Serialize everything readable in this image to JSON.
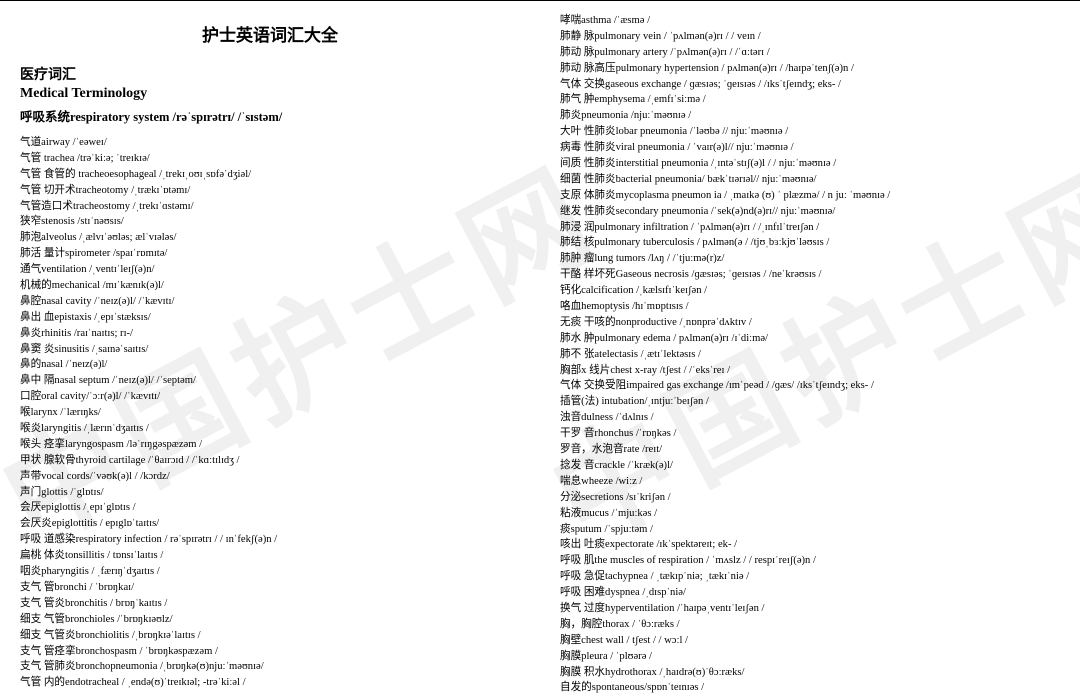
{
  "watermark": "中国护士网",
  "main_title": "护士英语词汇大全",
  "section_cn": "医疗词汇",
  "section_en": "Medical Terminology",
  "subsection_cn": "呼吸系统",
  "subsection_en": "respiratory system /rəˈspɪrətrɪ/ /ˈsɪstəm/",
  "left_entries": [
    "气道airway /ˈeəweɪ/",
    "气管 trachea /trəˈkiːə; ˈtreɪkɪə/",
    "气管 食管的 tracheoesophageal /ˌtrekɪˌoʊɪˌsɒfəˈdʒiəl/",
    "气管 切开术tracheotomy /ˌtrækɪˈɒtəmɪ/",
    "气管造口术tracheostomy /ˌtrekɪˈɑstəmɪ/",
    "狭窄stenosis /stɪˈnəʊsɪs/",
    "肺泡alveolus /ˌælvɪˈəʊləs; ælˈvɪələs/",
    "肺活 量计spirometer /spaɪˈrɒmɪtə/",
    "通气ventilation /ˌventɪˈleɪʃ(ə)n/",
    "机械的mechanical /mɪˈkænɪk(ə)l/",
    "鼻腔nasal cavity /ˈneɪz(ə)l/ /ˈkævɪtɪ/",
    "鼻出 血epistaxis /ˌepɪˈstæksɪs/",
    "鼻炎rhinitis /raɪˈnaɪtɪs; rɪ-/",
    "鼻窦 炎sinusitis /ˌsaɪnəˈsaɪtɪs/",
    "鼻的nasal /ˈneɪz(ə)l/",
    "鼻中 隔nasal septum /ˈneɪz(ə)l/ /ˈseptəm/",
    "口腔oral cavity/ˈɔːr(ə)l/ /ˈkævɪtɪ/",
    "喉larynx /ˈlærɪŋks/",
    "喉炎laryngitis /ˌlærɪnˈdʒaɪtɪs /",
    "喉头 痉挛laryngospasm /ləˈrɪŋgəspæzəm /",
    "甲状 腺软骨thyroid cartilage /ˈθaɪrɔɪd / /ˈkɑːtɪlɪdʒ /",
    "声带vocal cords/ˈvəʊk(ə)l / /kɔrdz/",
    "声门glottis /ˈglɒtɪs/",
    "会厌epiglottis /ˌepɪˈglɒtɪs /",
    "会厌炎epiglottitis / epɪglɒˈtaɪtɪs/",
    "呼吸 道感染respiratory infection / rəˈspɪrətrɪ / / ɪnˈfekʃ(ə)n /",
    "扁桃 体炎tonsillitis / tɒnsɪˈlaɪtɪs /",
    "咽炎pharyngitis / ˌfærɪŋˈdʒaɪtɪs /",
    "支气 管bronchi / ˈbrɒŋkaɪ/",
    "支气 管炎bronchitis / brɒŋˈkaɪtɪs /",
    "细支 气管bronchioles /ˈbrɒŋkɪəʊlz/",
    "细支 气管炎bronchiolitis /ˌbrɒŋkɪəˈlaɪtɪs /",
    "支气 管痉挛bronchospasm / ˈbrɒŋkəspæzəm /",
    "支气 管肺炎bronchopneumonia /ˌbrɒŋkə(ʊ)njuːˈməʊnɪə/",
    "气管 内的endotracheal / ˌendə(ʊ)ˈtreɪkɪəl; -trəˈkiːəl /"
  ],
  "right_entries": [
    "哮喘asthma /ˈæsmə /",
    "肺静 脉pulmonary vein / ˈpʌlmən(ə)rɪ / / veɪn /",
    "肺动 脉pulmonary artery /ˈpʌlmən(ə)rɪ / /ˈɑːtərɪ /",
    "肺动 脉高压pulmonary hypertension / pʌlmən(ə)rɪ / /haɪpəˈtenʃ(ə)n /",
    "气体 交换gaseous exchange / ɡæsɪəs; ˈɡeɪsɪəs / /ɪksˈtʃeɪndʒ; eks- /",
    "肺气 肿emphysema /ˌemfɪˈsiːmə /",
    "肺炎pneumonia /njuːˈməʊnɪə /",
    "大叶 性肺炎lobar pneumonia /ˈləʊbə // njuːˈməʊnɪə /",
    "病毒 性肺炎viral pneumonia / ˈvaɪr(ə)l// njuːˈməʊnɪə /",
    "间质 性肺炎interstitial pneumonia /ˌɪntəˈstɪʃ(ə)l / / njuːˈməʊnɪə /",
    "细菌 性肺炎bacterial pneumonia/ bækˈtɪərɪəl// njuːˈməʊnɪə/",
    "支原 体肺炎mycoplasma pneumon ia / ˌmaɪkə (ʊ) ˈ plæzmə/ /  n juː ˈməʊnɪə  /",
    "继发 性肺炎secondary pneumonia /ˈsek(ə)nd(ə)rɪ// njuːˈməʊnɪə/",
    "肺浸 润pulmonary infiltration / ˈpʌlmən(ə)rɪ / /ˌɪnfɪlˈtreɪʃən /",
    "肺结 核pulmonary tuberculosis / pʌlmən(ə / /tjʊˌbɜːkjʊˈləʊsɪs /",
    "肺肿 瘤lung tumors /lʌŋ / /ˈtjuːmə(r)z/",
    "干酪 样坏死Gaseous necrosis /ɡæsɪəs; ˈɡeɪsɪəs / /neˈkrəʊsɪs /",
    "钙化calcification /ˌkælsɪfɪˈkeɪʃən /",
    "咯血hemoptysis /hɪˈmɒptɪsɪs /",
    "无痰 干咳的nonproductive /ˌnɒnprəˈdʌktɪv /",
    "肺水 肿pulmonary edema / pʌlmən(ə)rɪ /ɪˈdiːmə/",
    "肺不 张atelectasis /ˌætɪˈlektəsɪs /",
    "胸部x 线片chest x-ray /tʃest / /ˈeksˈreɪ /",
    "气体 交换受阻impaired gas exchange /ɪmˈpeəd / /ɡæs/ /ɪksˈtʃeɪndʒ; eks- /",
    "插管(法) intubation/ˌɪntjuːˈbeɪʃən /",
    "浊音dulness /ˈdʌlnɪs /",
    "干罗 音rhonchus /ˈrɒŋkəs /",
    "罗音，水泡音rate /reɪt/",
    "捻发 音crackle /ˈkræk(ə)l/",
    "喘息wheeze /wiːz /",
    "分泌secretions /sɪˈkriʃən /",
    "粘液mucus /ˈmjuːkəs /",
    "痰sputum /ˈspjuːtəm /",
    "咳出 吐痰expectorate /ɪkˈspektəreɪt; ek- /",
    "呼吸 肌the muscles of respiration / ˈmʌslz / / respɪˈreɪʃ(ə)n /",
    "呼吸 急促tachypnea / ˌtækɪpˈniə; ˌtækɪˈniə /",
    "呼吸 困难dyspnea /ˌdɪspˈniə/",
    "换气 过度hyperventilation /ˈhaɪpəˌventɪˈleɪʃən /",
    "胸，胸腔thorax / ˈθɔːræks /",
    "胸壁chest wall / tʃest / / wɔːl /",
    "胸膜pleura / ˈplʊərə /",
    "胸膜 积水hydrothorax /ˌhaɪdrə(ʊ)ˈθɔːræks/",
    "自发的spontaneous/spɒnˈteɪnɪəs /"
  ]
}
